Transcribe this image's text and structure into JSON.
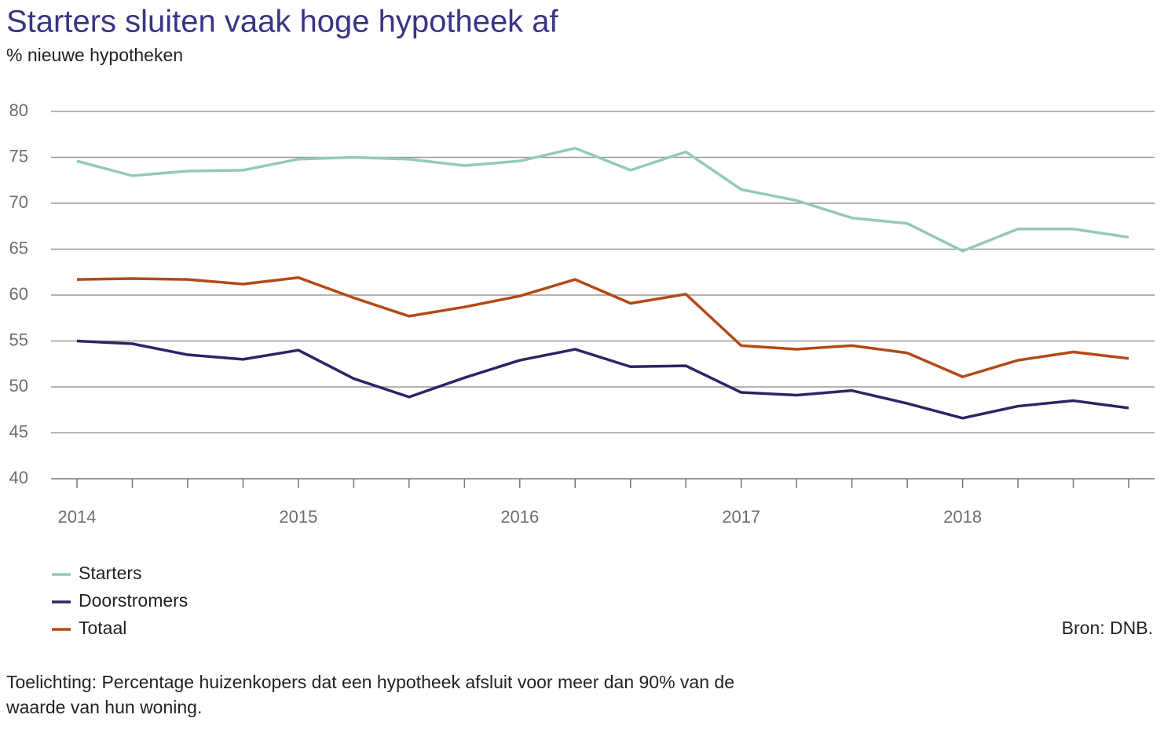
{
  "chart_data": {
    "type": "line",
    "title": "Starters sluiten vaak hoge hypotheek af",
    "subtitle": "% nieuwe hypotheken",
    "categories": [
      "2014",
      null,
      null,
      null,
      "2015",
      null,
      null,
      null,
      "2016",
      null,
      null,
      null,
      "2017",
      null,
      null,
      null,
      "2018",
      null,
      null,
      null
    ],
    "series": [
      {
        "name": "Starters",
        "color": "#93c9bb",
        "values": [
          74.6,
          73.0,
          73.5,
          73.6,
          74.8,
          75.0,
          74.8,
          74.1,
          74.6,
          76.0,
          73.6,
          75.6,
          71.5,
          70.3,
          68.4,
          67.8,
          64.8,
          67.2,
          67.2,
          66.3
        ]
      },
      {
        "name": "Doorstromers",
        "color": "#2b2566",
        "values": [
          55.0,
          54.7,
          53.5,
          53.0,
          54.0,
          50.9,
          48.9,
          51.0,
          52.9,
          54.1,
          52.2,
          52.3,
          49.4,
          49.1,
          49.6,
          48.2,
          46.6,
          47.9,
          48.5,
          47.7
        ]
      },
      {
        "name": "Totaal",
        "color": "#b24a17",
        "values": [
          61.7,
          61.8,
          61.7,
          61.2,
          61.9,
          59.7,
          57.7,
          58.7,
          59.9,
          61.7,
          59.1,
          60.1,
          54.5,
          54.1,
          54.5,
          53.7,
          51.1,
          52.9,
          53.8,
          53.1
        ]
      }
    ],
    "ylim": [
      40,
      80
    ],
    "yticks": [
      40,
      45,
      50,
      55,
      60,
      65,
      70,
      75,
      80
    ],
    "grid": true,
    "legend": "bottom-left",
    "source": "Bron: DNB.",
    "note": [
      "Toelichting: Percentage huizenkopers dat een hypotheek afsluit voor meer dan 90% van de",
      "waarde van hun woning."
    ]
  }
}
